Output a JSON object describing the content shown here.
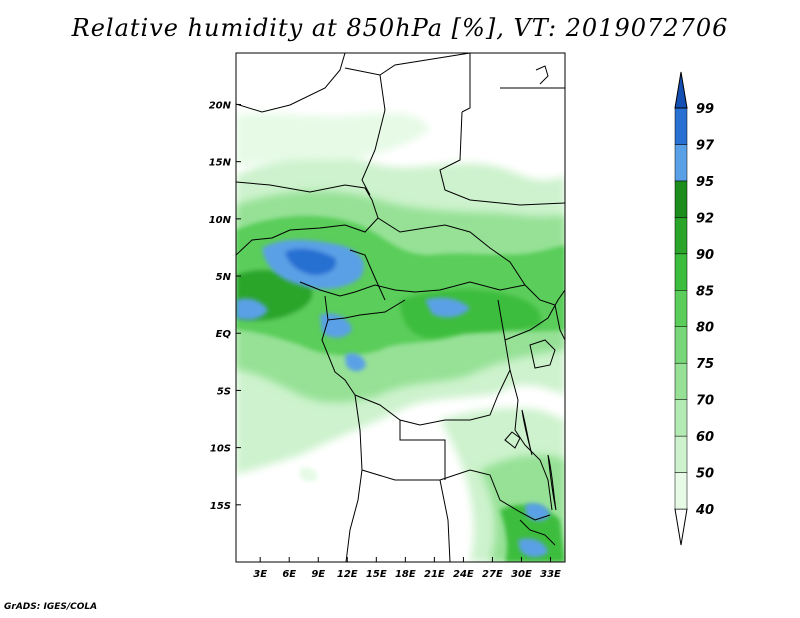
{
  "title": "Relative humidity at 850hPa [%], VT: 2019072706",
  "credit": "GrADS: IGES/COLA",
  "map": {
    "lat_labels": [
      "20N",
      "15N",
      "10N",
      "5N",
      "EQ",
      "5S",
      "10S",
      "15S"
    ],
    "lat_values": [
      20,
      15,
      10,
      5,
      0,
      -5,
      -10,
      -15
    ],
    "lon_labels": [
      "3E",
      "6E",
      "9E",
      "12E",
      "15E",
      "18E",
      "21E",
      "24E",
      "27E",
      "30E",
      "33E"
    ],
    "lon_values": [
      3,
      6,
      9,
      12,
      15,
      18,
      21,
      24,
      27,
      30,
      33
    ],
    "lon_range": [
      0.5,
      34.5
    ],
    "lat_range": [
      -20,
      24.5
    ]
  },
  "colorbar": {
    "labels": [
      "40",
      "50",
      "60",
      "70",
      "75",
      "80",
      "85",
      "90",
      "92",
      "95",
      "97",
      "99"
    ],
    "colors": [
      "#ffffff",
      "#e6fae6",
      "#cdf2cd",
      "#b4ebb4",
      "#96e196",
      "#78d778",
      "#5acd5a",
      "#3cbd3c",
      "#2aa52a",
      "#1c8c1c",
      "#5aa0e6",
      "#2870d2",
      "#1450b4"
    ]
  }
}
